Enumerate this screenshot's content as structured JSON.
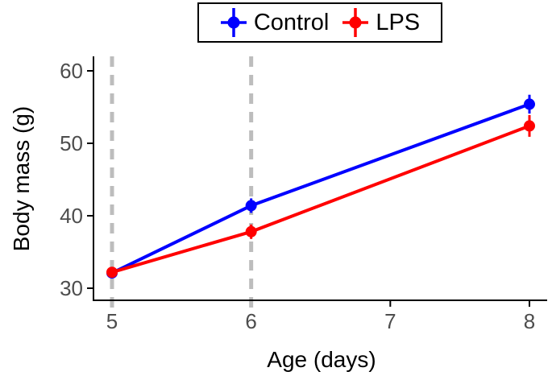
{
  "chart_data": {
    "type": "line",
    "title": "",
    "xlabel": "Age (days)",
    "ylabel": "Body mass (g)",
    "x_ticks": [
      5,
      6,
      7,
      8
    ],
    "y_ticks": [
      30,
      40,
      50,
      60
    ],
    "xlim": [
      4.87,
      8.13
    ],
    "ylim": [
      28.3,
      61.4
    ],
    "grid": false,
    "legend_position": "top-center",
    "axis_color": "#000000",
    "tick_label_color": "#4d4d4d",
    "vlines": {
      "x": [
        5,
        6
      ],
      "style": "dashed",
      "color": "#bdbdbd"
    },
    "series": [
      {
        "name": "Control",
        "color": "#0000ff",
        "x": [
          5,
          6,
          8
        ],
        "y": [
          32.1,
          41.4,
          55.4
        ],
        "error": [
          0.5,
          1.0,
          1.3
        ]
      },
      {
        "name": "LPS",
        "color": "#ff0000",
        "x": [
          5,
          6,
          8
        ],
        "y": [
          32.2,
          37.8,
          52.4
        ],
        "error": [
          0.5,
          1.0,
          1.5
        ]
      }
    ]
  }
}
